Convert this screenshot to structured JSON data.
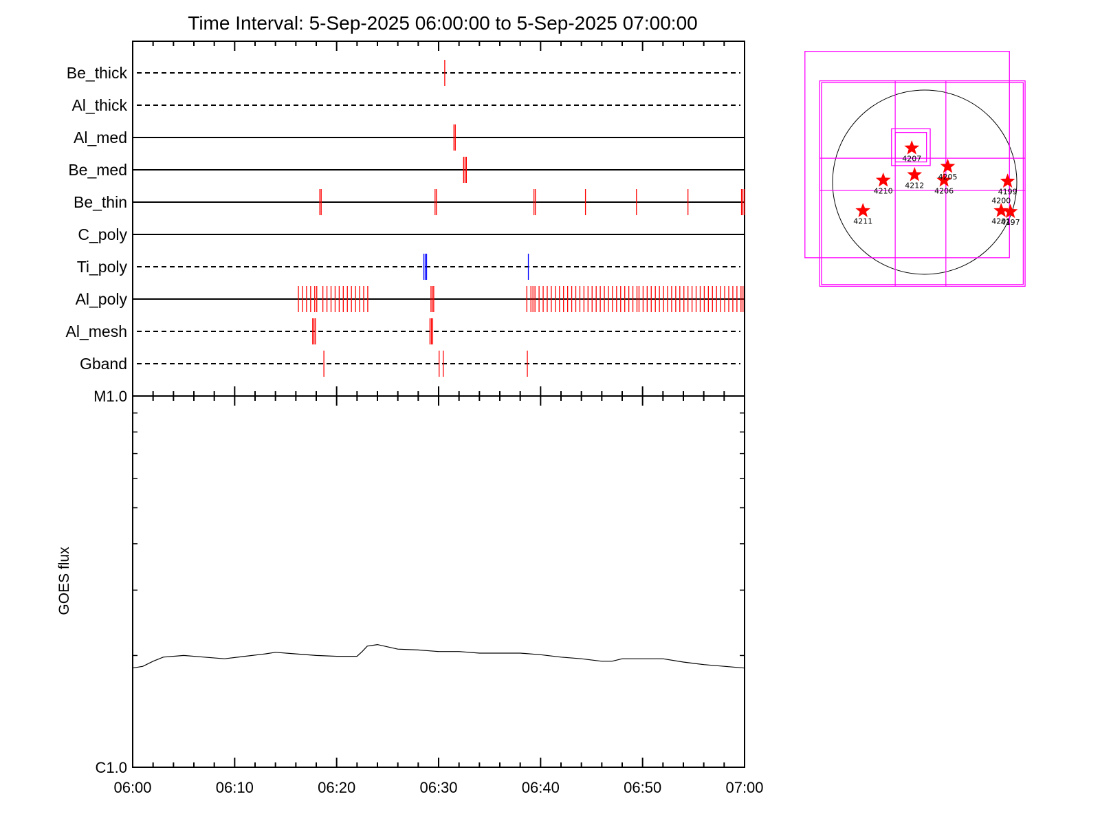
{
  "title": "Time Interval:  5-Sep-2025 06:00:00 to  5-Sep-2025 07:00:00",
  "colors": {
    "event": "#ff0000",
    "ti_event": "#0000ff",
    "box": "#ff00ff",
    "flux": "#000000",
    "star": "#ff0000"
  },
  "chart_data": [
    {
      "type": "timeline",
      "x_range": [
        "06:00",
        "07:00"
      ],
      "rows": [
        {
          "label": "Be_thick",
          "style": "dashed",
          "events": [
            [
              "06:30:36",
              1
            ]
          ]
        },
        {
          "label": "Al_thick",
          "style": "dashed",
          "events": []
        },
        {
          "label": "Al_med",
          "style": "solid",
          "events": [
            [
              "06:31:30",
              2
            ]
          ]
        },
        {
          "label": "Be_med",
          "style": "solid",
          "events": [
            [
              "06:32:27",
              3
            ]
          ]
        },
        {
          "label": "Be_thin",
          "style": "solid",
          "events": [
            [
              "06:18:21",
              2
            ],
            [
              "06:29:39",
              2
            ],
            [
              "06:39:21",
              2
            ],
            [
              "06:44:24",
              1
            ],
            [
              "06:49:24",
              1
            ],
            [
              "06:54:27",
              1
            ],
            [
              "06:59:42",
              3
            ]
          ]
        },
        {
          "label": "C_poly",
          "style": "solid",
          "events": []
        },
        {
          "label": "Ti_poly",
          "style": "dashed",
          "events": [
            [
              "06:28:33",
              3
            ],
            [
              "06:38:48",
              1
            ]
          ],
          "color": "#0000ff"
        },
        {
          "label": "Al_poly",
          "style": "solid",
          "events": [
            [
              "06:16:15",
              1
            ],
            [
              "06:16:39",
              1
            ],
            [
              "06:17:03",
              1
            ],
            [
              "06:17:27",
              1
            ],
            [
              "06:17:51",
              1
            ],
            [
              "06:18:03",
              1
            ],
            [
              "06:18:39",
              1
            ],
            [
              "06:19:03",
              1
            ],
            [
              "06:19:27",
              1
            ],
            [
              "06:19:51",
              1
            ],
            [
              "06:20:15",
              1
            ],
            [
              "06:20:39",
              1
            ],
            [
              "06:21:03",
              1
            ],
            [
              "06:21:27",
              1
            ],
            [
              "06:21:51",
              1
            ],
            [
              "06:22:15",
              1
            ],
            [
              "06:22:39",
              1
            ],
            [
              "06:23:03",
              1
            ],
            [
              "06:29:15",
              3
            ],
            [
              "06:38:39",
              1
            ],
            [
              "06:39:03",
              1
            ],
            [
              "06:39:15",
              1
            ],
            [
              "06:39:27",
              1
            ],
            [
              "06:39:51",
              1
            ],
            [
              "06:40:15",
              1
            ],
            [
              "06:40:39",
              1
            ],
            [
              "06:41:03",
              1
            ],
            [
              "06:41:27",
              1
            ],
            [
              "06:41:51",
              1
            ],
            [
              "06:42:15",
              1
            ],
            [
              "06:42:39",
              1
            ],
            [
              "06:43:03",
              1
            ],
            [
              "06:43:27",
              1
            ],
            [
              "06:43:51",
              1
            ],
            [
              "06:44:15",
              1
            ],
            [
              "06:44:39",
              1
            ],
            [
              "06:45:03",
              1
            ],
            [
              "06:45:27",
              1
            ],
            [
              "06:45:51",
              1
            ],
            [
              "06:46:15",
              1
            ],
            [
              "06:46:39",
              1
            ],
            [
              "06:47:03",
              1
            ],
            [
              "06:47:27",
              1
            ],
            [
              "06:47:51",
              1
            ],
            [
              "06:48:15",
              1
            ],
            [
              "06:48:39",
              1
            ],
            [
              "06:49:03",
              1
            ],
            [
              "06:49:27",
              1
            ],
            [
              "06:49:39",
              1
            ],
            [
              "06:50:03",
              1
            ],
            [
              "06:50:27",
              1
            ],
            [
              "06:50:51",
              1
            ],
            [
              "06:51:15",
              1
            ],
            [
              "06:51:39",
              1
            ],
            [
              "06:52:03",
              1
            ],
            [
              "06:52:27",
              1
            ],
            [
              "06:52:51",
              1
            ],
            [
              "06:53:15",
              1
            ],
            [
              "06:53:39",
              1
            ],
            [
              "06:54:03",
              1
            ],
            [
              "06:54:27",
              1
            ],
            [
              "06:54:51",
              1
            ],
            [
              "06:55:15",
              1
            ],
            [
              "06:55:39",
              1
            ],
            [
              "06:56:03",
              1
            ],
            [
              "06:56:27",
              1
            ],
            [
              "06:56:51",
              1
            ],
            [
              "06:57:15",
              1
            ],
            [
              "06:57:39",
              1
            ],
            [
              "06:58:03",
              1
            ],
            [
              "06:58:27",
              1
            ],
            [
              "06:58:51",
              1
            ],
            [
              "06:59:15",
              1
            ],
            [
              "06:59:39",
              1
            ],
            [
              "06:59:51",
              1
            ]
          ]
        },
        {
          "label": "Al_mesh",
          "style": "dashed",
          "events": [
            [
              "06:17:39",
              3
            ],
            [
              "06:29:09",
              3
            ]
          ]
        },
        {
          "label": "Gband",
          "style": "dashed",
          "events": [
            [
              "06:18:45",
              1
            ],
            [
              "06:30:03",
              1
            ],
            [
              "06:30:27",
              1
            ],
            [
              "06:38:42",
              1
            ]
          ]
        }
      ]
    },
    {
      "type": "line",
      "ylabel": "GOES flux",
      "yscale": "log",
      "ylim": [
        1e-06,
        1e-05
      ],
      "yticklabels": [
        "C1.0",
        "M1.0"
      ],
      "xlim": [
        "06:00",
        "07:00"
      ],
      "xticklabels": [
        "06:00",
        "06:10",
        "06:20",
        "06:30",
        "06:40",
        "06:50",
        "07:00"
      ],
      "series": [
        {
          "x": [
            "06:00",
            "06:01",
            "06:02",
            "06:03",
            "06:05",
            "06:07",
            "06:09",
            "06:11",
            "06:13",
            "06:14",
            "06:16",
            "06:18",
            "06:20",
            "06:22",
            "06:22:30",
            "06:23",
            "06:24",
            "06:26",
            "06:28",
            "06:30",
            "06:32",
            "06:34",
            "06:36",
            "06:38",
            "06:40",
            "06:42",
            "06:44",
            "06:46",
            "06:47",
            "06:48",
            "06:50",
            "06:52",
            "06:54",
            "06:56",
            "06:58",
            "07:00"
          ],
          "y": [
            1.85e-06,
            1.87e-06,
            1.93e-06,
            1.98e-06,
            2e-06,
            1.98e-06,
            1.96e-06,
            1.99e-06,
            2.02e-06,
            2.04e-06,
            2.02e-06,
            2e-06,
            1.99e-06,
            1.99e-06,
            2.05e-06,
            2.12e-06,
            2.14e-06,
            2.08e-06,
            2.07e-06,
            2.05e-06,
            2.05e-06,
            2.03e-06,
            2.03e-06,
            2.03e-06,
            2.01e-06,
            1.98e-06,
            1.96e-06,
            1.93e-06,
            1.93e-06,
            1.96e-06,
            1.96e-06,
            1.96e-06,
            1.92e-06,
            1.89e-06,
            1.87e-06,
            1.85e-06
          ]
        }
      ]
    },
    {
      "type": "scatter",
      "description_axes": "solar disk, arcsec",
      "disk_radius": 1000,
      "pointings": [
        [
          -1300,
          1420,
          920,
          -820
        ],
        [
          -1140,
          1100,
          1090,
          -1130
        ],
        [
          -1120,
          1080,
          1070,
          -1110
        ],
        [
          -360,
          580,
          60,
          180
        ],
        [
          -320,
          540,
          20,
          220
        ]
      ],
      "grid_lines": {
        "x": [
          -320,
          230
        ],
        "y": [
          260,
          -90
        ]
      },
      "active_regions": [
        {
          "name": "4207",
          "x": -140,
          "y": 370
        },
        {
          "name": "4205",
          "x": 250,
          "y": 170
        },
        {
          "name": "4212",
          "x": -110,
          "y": 80
        },
        {
          "name": "4206",
          "x": 210,
          "y": 20
        },
        {
          "name": "4210",
          "x": -450,
          "y": 20
        },
        {
          "name": "4199",
          "x": 900,
          "y": 10
        },
        {
          "name": "4211",
          "x": -670,
          "y": -310
        },
        {
          "name": "4201",
          "x": 830,
          "y": -310
        },
        {
          "name": "4197",
          "x": 930,
          "y": -320
        }
      ],
      "region_labels": [
        {
          "text": "4207",
          "ar": "4207"
        },
        {
          "text": "4205",
          "ar": "4205"
        },
        {
          "text": "4212",
          "ar": "4212"
        },
        {
          "text": "4206",
          "ar": "4206"
        },
        {
          "text": "4210",
          "ar": "4210"
        },
        {
          "text": "4199",
          "ar": "4199"
        },
        {
          "text": "4211",
          "ar": "4211"
        },
        {
          "text": "4201",
          "ar": "4201"
        },
        {
          "text": "4197",
          "ar": "4197"
        },
        {
          "text": "4200",
          "ar": "4201"
        }
      ]
    }
  ]
}
